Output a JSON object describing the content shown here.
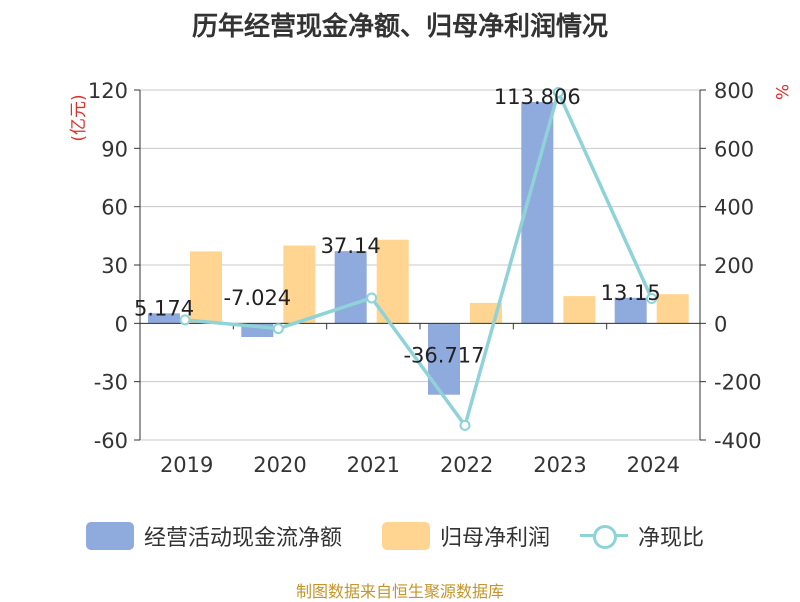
{
  "chart_data": {
    "type": "bar",
    "title": "历年经营现金净额、归母净利润情况",
    "categories": [
      "2019",
      "2020",
      "2021",
      "2022",
      "2023",
      "2024"
    ],
    "series": [
      {
        "name": "经营活动现金流净额",
        "axis": "left",
        "kind": "bar",
        "color": "#8faadc",
        "values": [
          5.174,
          -7.024,
          37.14,
          -36.717,
          113.806,
          13.15
        ],
        "labels": [
          "5.174",
          "-7.024",
          "37.14",
          "-36.717",
          "113.806",
          "13.15"
        ]
      },
      {
        "name": "归母净利润",
        "axis": "left",
        "kind": "bar",
        "color": "#ffd591",
        "values": [
          37,
          40,
          43,
          10.5,
          14,
          15
        ]
      },
      {
        "name": "净现比",
        "axis": "right",
        "kind": "line",
        "color": "#8fd3d8",
        "values": [
          12,
          -18,
          87,
          -350,
          792,
          85
        ]
      }
    ],
    "left_axis": {
      "label": "(亿元)",
      "ylim": [
        -60,
        120
      ],
      "ticks": [
        120,
        90,
        60,
        30,
        0,
        -30,
        -60
      ],
      "tick_labels": [
        "120",
        "90",
        "60",
        "30",
        "0",
        "-30",
        "-60"
      ]
    },
    "right_axis": {
      "label": "%",
      "ylim": [
        -400,
        800
      ],
      "ticks": [
        800,
        600,
        400,
        200,
        0,
        -200,
        -400
      ],
      "tick_labels": [
        "800",
        "600",
        "400",
        "200",
        "0",
        "-200",
        "-400"
      ]
    },
    "grid": true,
    "legend_position": "bottom",
    "source": "制图数据来自恒生聚源数据库",
    "colors": {
      "axis_label": "#d9302c",
      "source": "#c4952b"
    }
  }
}
